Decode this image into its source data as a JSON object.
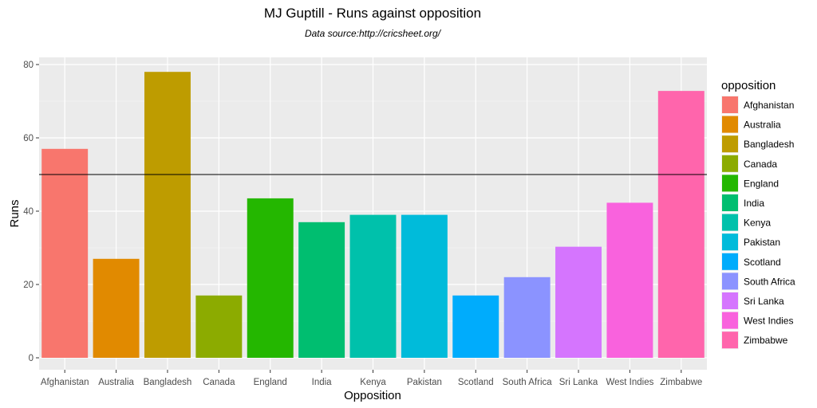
{
  "chart_data": {
    "type": "bar",
    "title": "MJ Guptill - Runs against opposition",
    "subtitle": "Data source:http://cricsheet.org/",
    "xlabel": "Opposition",
    "ylabel": "Runs",
    "ylim": [
      0,
      82
    ],
    "yticks": [
      0,
      20,
      40,
      60,
      80
    ],
    "reference_line": 50,
    "grid": true,
    "legend_position": "right",
    "legend_title": "opposition",
    "categories": [
      "Afghanistan",
      "Australia",
      "Bangladesh",
      "Canada",
      "England",
      "India",
      "Kenya",
      "Pakistan",
      "Scotland",
      "South Africa",
      "Sri Lanka",
      "West Indies",
      "Zimbabwe"
    ],
    "values": [
      57,
      27,
      78,
      17,
      43.5,
      37,
      39,
      39,
      17,
      22,
      30.3,
      42.3,
      72.8
    ],
    "colors": [
      "#F8766D",
      "#E18A00",
      "#BE9C00",
      "#8CAB00",
      "#24B700",
      "#00BE70",
      "#00C1AB",
      "#00BBDA",
      "#00ACFC",
      "#8B93FF",
      "#D575FE",
      "#F962DD",
      "#FF65AC"
    ]
  }
}
